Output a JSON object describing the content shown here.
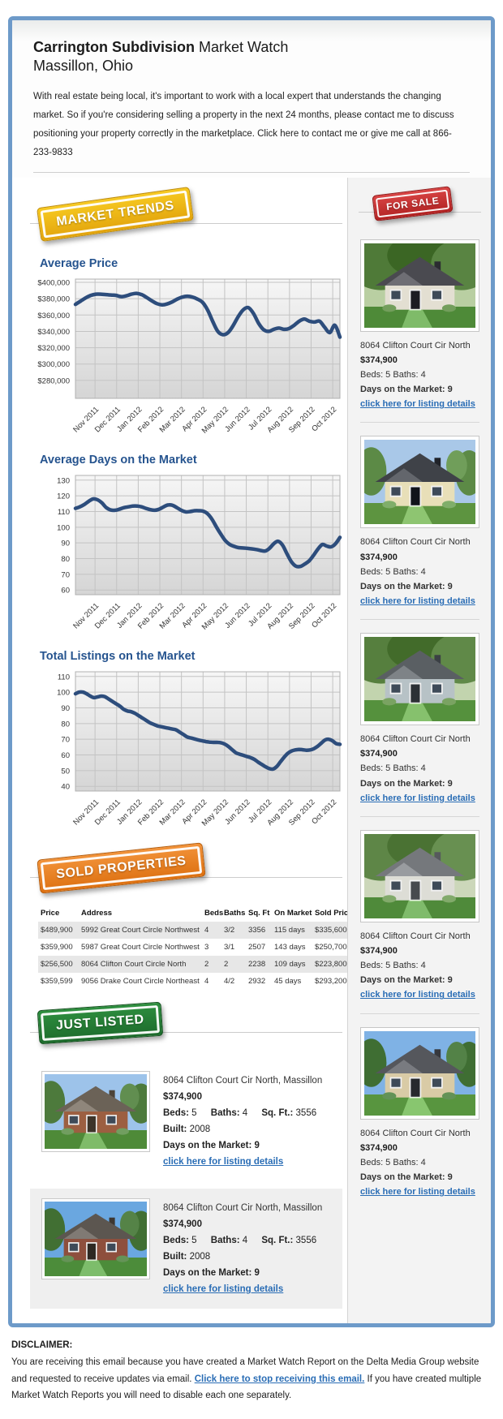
{
  "header": {
    "title_bold": "Carrington Subdivision",
    "title_rest": "Market Watch",
    "subtitle": "Massillon, Ohio",
    "intro": "With real estate being local, it's important to work with a local expert that understands the changing market. So if you're considering selling a property in the next 24 months, please contact me to discuss positioning your property correctly in the marketplace. Click here to contact me or give me call at 866-233-9833"
  },
  "badges": {
    "market_trends": "MARKET TRENDS",
    "for_sale": "FOR SALE",
    "sold_properties": "SOLD PROPERTIES",
    "just_listed": "JUST LISTED"
  },
  "labels": {
    "beds": "Beds:",
    "baths": "Baths:",
    "sqft": "Sq. Ft.:",
    "built": "Built:",
    "days": "Days on the Market:",
    "link": "click here for listing details"
  },
  "colors": {
    "frame_border": "#6d9ac9",
    "heading_blue": "#26548f",
    "link_blue": "#2a6db5",
    "chart_line": "#2d4d7c",
    "chart_plot_top": "#f6f6f6",
    "chart_plot_bottom": "#d5d5d5",
    "sidebar_bg": "#f3f3f3",
    "row_shade": "#e7e7e7",
    "badge_market_light": "#f7ca22",
    "badge_market_dark": "#e2a30c",
    "badge_sale_light": "#d94545",
    "badge_sale_dark": "#b12222",
    "badge_sold_light": "#f2933a",
    "badge_sold_dark": "#dd7010",
    "badge_listed_light": "#2e8f3f",
    "badge_listed_dark": "#1d6b2c"
  },
  "chart_data": [
    {
      "type": "line",
      "title": "Average Price",
      "xlabel": "",
      "ylabel": "",
      "grid": true,
      "legend": "none",
      "line_color": "#2d4d7c",
      "x_categories": [
        "Nov 2011",
        "Dec 2011",
        "Jan 2012",
        "Feb 2012",
        "Mar 2012",
        "Apr 2012",
        "May 2012",
        "Jun 2012",
        "Jul 2012",
        "Aug 2012",
        "Sep 2012",
        "Oct 2012"
      ],
      "ylim": [
        258000,
        404000
      ],
      "yticks": [
        400000,
        380000,
        360000,
        340000,
        320000,
        300000,
        280000
      ],
      "ytick_labels": [
        "$400,000",
        "$380,000",
        "$360,000",
        "$340,000",
        "$320,000",
        "$300,000",
        "$280,000"
      ],
      "values": [
        373000,
        377000,
        381000,
        384000,
        385500,
        385500,
        385000,
        384500,
        384000,
        382500,
        383500,
        385500,
        386500,
        385000,
        381500,
        377500,
        374000,
        372500,
        373500,
        376000,
        379500,
        382000,
        383000,
        382000,
        379500,
        375500,
        366000,
        352000,
        340000,
        336000,
        338500,
        347000,
        358000,
        366500,
        369000,
        362000,
        350000,
        342000,
        340000,
        342500,
        344000,
        342500,
        343500,
        347500,
        352500,
        355000,
        352500,
        351500,
        352500,
        345000,
        338500,
        347500,
        333000
      ]
    },
    {
      "type": "line",
      "title": "Average Days on the Market",
      "xlabel": "",
      "ylabel": "",
      "grid": true,
      "legend": "none",
      "line_color": "#2d4d7c",
      "x_categories": [
        "Nov 2011",
        "Dec 2011",
        "Jan 2012",
        "Feb 2012",
        "Mar 2012",
        "Apr 2012",
        "May 2012",
        "Jun 2012",
        "Jul 2012",
        "Aug 2012",
        "Sep 2012",
        "Oct 2012"
      ],
      "ylim": [
        57,
        133
      ],
      "yticks": [
        130,
        120,
        110,
        100,
        90,
        80,
        70,
        60
      ],
      "ytick_labels": [
        "130",
        "120",
        "110",
        "100",
        "90",
        "80",
        "70",
        "60"
      ],
      "values": [
        112,
        113,
        114.5,
        116.5,
        118,
        117.5,
        115.5,
        112.5,
        111,
        110.8,
        111.5,
        112.5,
        113,
        113.5,
        113.5,
        113,
        112,
        111.2,
        110.8,
        111.5,
        113,
        114.2,
        114,
        112.5,
        110.8,
        109.8,
        110,
        110.5,
        110.5,
        110.2,
        108.5,
        105,
        100,
        95.5,
        91.5,
        89,
        87.8,
        87,
        86.8,
        86.5,
        86.2,
        85.8,
        85.2,
        84.8,
        86.5,
        89.5,
        91,
        88.5,
        83,
        78,
        75.2,
        75,
        76.5,
        78.5,
        82,
        86,
        89,
        88,
        87.5,
        89.5,
        93.5
      ]
    },
    {
      "type": "line",
      "title": "Total Listings on the Market",
      "xlabel": "",
      "ylabel": "",
      "grid": true,
      "legend": "none",
      "line_color": "#2d4d7c",
      "x_categories": [
        "Nov 2011",
        "Dec 2011",
        "Jan 2012",
        "Feb 2012",
        "Mar 2012",
        "Apr 2012",
        "May 2012",
        "Jun 2012",
        "Jul 2012",
        "Aug 2012",
        "Sep 2012",
        "Oct 2012"
      ],
      "ylim": [
        37,
        113
      ],
      "yticks": [
        110,
        100,
        90,
        80,
        70,
        60,
        50,
        40
      ],
      "ytick_labels": [
        "110",
        "100",
        "90",
        "80",
        "70",
        "60",
        "50",
        "40"
      ],
      "values": [
        99,
        100,
        100,
        99,
        97.5,
        96.5,
        97,
        97.5,
        97,
        95.5,
        94,
        92.5,
        91,
        89,
        88,
        87.5,
        86.5,
        85,
        83.5,
        82,
        80.5,
        79.5,
        78.5,
        78,
        77.5,
        77,
        76.5,
        76,
        74.5,
        73,
        71.5,
        70.8,
        70.2,
        69.5,
        69,
        68.5,
        68.2,
        68,
        68,
        67.8,
        67,
        65.5,
        63.5,
        61.5,
        60.5,
        59.8,
        59,
        58.3,
        57.2,
        55.5,
        54,
        52.5,
        51.3,
        51,
        52.5,
        55.5,
        58.5,
        61,
        62.5,
        63.2,
        63.5,
        63.3,
        63,
        63.2,
        64,
        65.5,
        67.5,
        69.5,
        70,
        69,
        67.2,
        66.8
      ]
    }
  ],
  "sidebar": {
    "listings": [
      {
        "address": "8064 Clifton Court Cir North",
        "price": "$374,900",
        "beds": "5",
        "baths": "4",
        "days_on_market": "9",
        "photo": {
          "bg": "trees",
          "sky": "#b9cfa2",
          "foliage": "#4f7a38",
          "wall": "#e3dfd2",
          "roof": "#4a4a50",
          "grass": "#4e8a38"
        }
      },
      {
        "address": "8064 Clifton Court Cir North",
        "price": "$374,900",
        "beds": "5",
        "baths": "4",
        "days_on_market": "9",
        "photo": {
          "bg": "sky",
          "sky": "#a9c8e8",
          "foliage": "#5c8a46",
          "wall": "#e8dfb8",
          "roof": "#3f4248",
          "grass": "#5d9440"
        }
      },
      {
        "address": "8064 Clifton Court Cir North",
        "price": "$374,900",
        "beds": "5",
        "baths": "4",
        "days_on_market": "9",
        "photo": {
          "bg": "trees",
          "sky": "#c2d4ae",
          "foliage": "#567f3e",
          "wall": "#b7c2c6",
          "roof": "#5a5f63",
          "grass": "#55913d"
        }
      },
      {
        "address": "8064 Clifton Court Cir North",
        "price": "$374,900",
        "beds": "5",
        "baths": "4",
        "days_on_market": "9",
        "photo": {
          "bg": "trees",
          "sky": "#ccd7ba",
          "foliage": "#5e8647",
          "wall": "#ddddd6",
          "roof": "#75787c",
          "grass": "#4f8a3a"
        }
      },
      {
        "address": "8064 Clifton Court Cir North",
        "price": "$374,900",
        "beds": "5",
        "baths": "4",
        "days_on_market": "9",
        "photo": {
          "bg": "sky",
          "sky": "#7fb2e5",
          "foliage": "#3f6e33",
          "wall": "#d9cba6",
          "roof": "#55575c",
          "grass": "#58953f"
        }
      }
    ]
  },
  "sold_table": {
    "headers": [
      "Price",
      "Address",
      "Beds",
      "Baths",
      "Sq. Ft",
      "On Market",
      "Sold Price"
    ],
    "rows": [
      [
        "$489,900",
        "5992 Great Court Circle Northwest",
        "4",
        "3/2",
        "3356",
        "115 days",
        "$335,600"
      ],
      [
        "$359,900",
        "5987 Great Court Circle Northwest",
        "3",
        "3/1",
        "2507",
        "143 days",
        "$250,700"
      ],
      [
        "$256,500",
        "8064 Clifton Court Circle North",
        "2",
        "2",
        "2238",
        "109 days",
        "$223,800"
      ],
      [
        "$359,599",
        "9056 Drake Court Circle Northeast",
        "4",
        "4/2",
        "2932",
        "45 days",
        "$293,200"
      ]
    ]
  },
  "just_listed": {
    "items": [
      {
        "address": "8064 Clifton Court Cir North, Massillon",
        "price": "$374,900",
        "beds": "5",
        "baths": "4",
        "sqft": "3556",
        "built": "2008",
        "days_on_market": "9",
        "photo": {
          "bg": "sky",
          "sky": "#9dc3ea",
          "foliage": "#4d7a3c",
          "wall": "#9c5f41",
          "roof": "#6b6257",
          "grass": "#4e8a38"
        }
      },
      {
        "address": "8064 Clifton Court Cir North, Massillon",
        "price": "$374,900",
        "beds": "5",
        "baths": "4",
        "sqft": "3556",
        "built": "2008",
        "days_on_market": "9",
        "photo": {
          "bg": "sky",
          "sky": "#6aa7e0",
          "foliage": "#416f33",
          "wall": "#8e4f3d",
          "roof": "#5c5650",
          "grass": "#4c8c3a"
        }
      }
    ]
  },
  "disclaimer": {
    "heading": "DISCLAIMER:",
    "text_before": "You are receiving this email because you have created a Market Watch Report on the Delta Media Group website and requested to receive updates via email.",
    "link_label": "Click here to stop receiving this email.",
    "text_after": "If you have created multiple Market Watch Reports you will need to disable each one separately."
  }
}
